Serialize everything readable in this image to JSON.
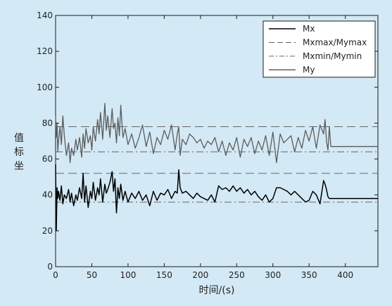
{
  "colors": {
    "background": "#d3e9f5",
    "plot_background": "#d3e9f5",
    "axes": "#1a1a1a",
    "mx": "#000000",
    "my": "#5c5c5c",
    "reference": "#666666"
  },
  "chart_data": {
    "type": "line",
    "title": "",
    "xlabel": "时间/(s)",
    "ylabel": "值标坐",
    "xlim": [
      0,
      445
    ],
    "ylim": [
      0,
      140
    ],
    "xticks": [
      0,
      50,
      100,
      150,
      200,
      250,
      300,
      350,
      400
    ],
    "yticks": [
      0,
      20,
      40,
      60,
      80,
      100,
      120,
      140
    ],
    "grid": false,
    "legend_position": "top-right",
    "legend": [
      {
        "label": "Mx",
        "style": "solid",
        "color": "#000000"
      },
      {
        "label": "Mxmax/Mymax",
        "style": "dashed",
        "color": "#666666"
      },
      {
        "label": "Mxmin/Mymin",
        "style": "dashdot",
        "color": "#666666"
      },
      {
        "label": "My",
        "style": "solid",
        "color": "#5c5c5c"
      }
    ],
    "reference_lines": [
      {
        "name": "Mymax",
        "y": 78,
        "style": "dashed"
      },
      {
        "name": "Mymin",
        "y": 64,
        "style": "dashdot"
      },
      {
        "name": "Mxmax",
        "y": 52,
        "style": "dashed"
      },
      {
        "name": "Mxmin",
        "y": 36,
        "style": "dashdot"
      }
    ],
    "series": [
      {
        "name": "Mx",
        "color": "#000000",
        "x": [
          0,
          1,
          2,
          3,
          4,
          6,
          8,
          10,
          12,
          15,
          18,
          20,
          22,
          25,
          28,
          30,
          33,
          36,
          38,
          40,
          42,
          45,
          48,
          50,
          52,
          55,
          58,
          60,
          62,
          65,
          68,
          70,
          72,
          75,
          78,
          80,
          82,
          84,
          86,
          88,
          90,
          93,
          96,
          100,
          105,
          110,
          115,
          120,
          125,
          130,
          135,
          140,
          145,
          150,
          155,
          160,
          165,
          168,
          170,
          172,
          175,
          180,
          185,
          190,
          195,
          200,
          205,
          210,
          215,
          220,
          225,
          230,
          235,
          240,
          245,
          250,
          255,
          260,
          265,
          270,
          275,
          280,
          285,
          290,
          295,
          300,
          305,
          310,
          315,
          320,
          325,
          330,
          335,
          340,
          345,
          350,
          355,
          360,
          365,
          370,
          372,
          374,
          376,
          378,
          380,
          445
        ],
        "y": [
          57,
          20,
          44,
          38,
          42,
          37,
          45,
          35,
          40,
          38,
          43,
          36,
          41,
          34,
          40,
          37,
          44,
          38,
          52,
          36,
          45,
          33,
          42,
          38,
          47,
          37,
          44,
          40,
          49,
          36,
          46,
          41,
          43,
          47,
          53,
          42,
          49,
          30,
          44,
          38,
          46,
          37,
          42,
          36,
          41,
          38,
          42,
          37,
          40,
          34,
          42,
          37,
          41,
          40,
          43,
          38,
          42,
          41,
          54,
          44,
          41,
          42,
          40,
          38,
          41,
          39,
          38,
          37,
          40,
          36,
          45,
          43,
          44,
          42,
          45,
          42,
          44,
          41,
          43,
          40,
          42,
          39,
          37,
          40,
          36,
          38,
          44,
          44,
          43,
          42,
          40,
          42,
          40,
          38,
          36,
          37,
          42,
          40,
          35,
          48,
          46,
          43,
          39,
          38,
          38,
          38
        ]
      },
      {
        "name": "My",
        "color": "#5c5c5c",
        "x": [
          0,
          1,
          2,
          3,
          4,
          6,
          8,
          10,
          12,
          15,
          18,
          20,
          22,
          25,
          28,
          30,
          33,
          36,
          38,
          40,
          42,
          45,
          48,
          50,
          52,
          55,
          58,
          60,
          62,
          65,
          68,
          70,
          72,
          75,
          78,
          80,
          82,
          84,
          86,
          88,
          90,
          93,
          96,
          100,
          105,
          110,
          115,
          120,
          125,
          130,
          135,
          140,
          145,
          150,
          155,
          160,
          165,
          168,
          170,
          172,
          175,
          180,
          185,
          190,
          195,
          200,
          205,
          210,
          215,
          220,
          225,
          230,
          235,
          240,
          245,
          250,
          255,
          260,
          265,
          270,
          275,
          280,
          285,
          290,
          295,
          300,
          305,
          310,
          315,
          320,
          325,
          330,
          335,
          340,
          345,
          350,
          355,
          360,
          365,
          370,
          372,
          374,
          376,
          378,
          380,
          445
        ],
        "y": [
          84,
          72,
          80,
          64,
          70,
          78,
          68,
          84,
          73,
          62,
          69,
          58,
          66,
          62,
          71,
          65,
          72,
          61,
          74,
          66,
          77,
          69,
          73,
          65,
          78,
          70,
          82,
          74,
          86,
          71,
          91,
          76,
          84,
          72,
          88,
          77,
          80,
          69,
          83,
          73,
          90,
          72,
          77,
          68,
          74,
          66,
          72,
          79,
          67,
          75,
          63,
          72,
          68,
          76,
          71,
          79,
          65,
          74,
          78,
          62,
          71,
          68,
          74,
          72,
          69,
          71,
          66,
          70,
          68,
          72,
          64,
          70,
          62,
          69,
          65,
          72,
          61,
          71,
          67,
          72,
          63,
          70,
          65,
          73,
          62,
          75,
          58,
          74,
          69,
          71,
          73,
          64,
          72,
          66,
          76,
          70,
          78,
          66,
          79,
          74,
          82,
          70,
          65,
          78,
          67,
          67
        ]
      }
    ]
  }
}
